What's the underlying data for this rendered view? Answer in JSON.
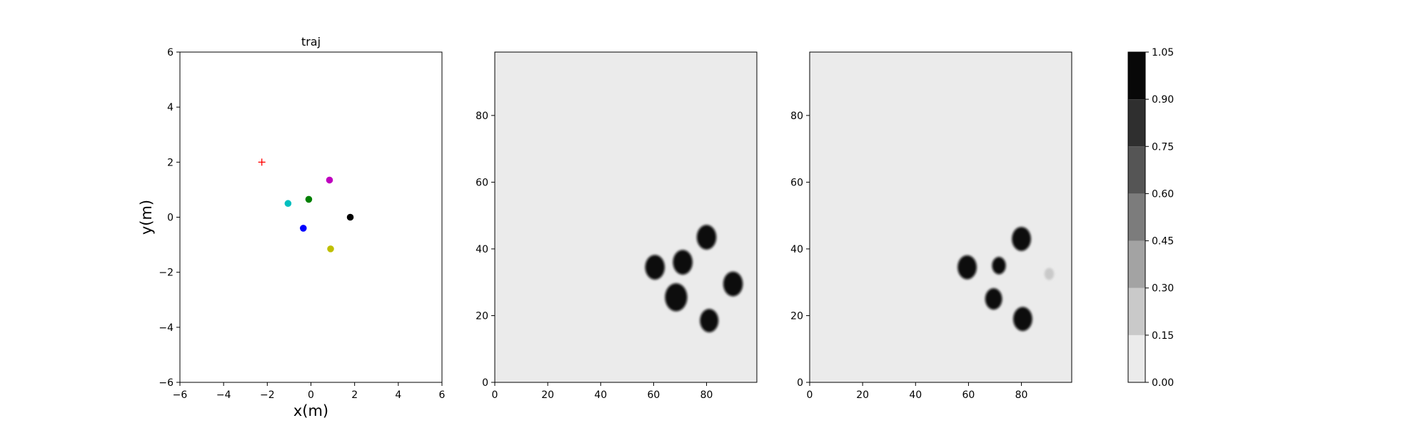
{
  "chart_data": [
    {
      "type": "scatter",
      "title": "traj",
      "xlabel": "x(m)",
      "ylabel": "y(m)",
      "xlim": [
        -6,
        6
      ],
      "ylim": [
        -6,
        6
      ],
      "xticks": [
        "−6",
        "−4",
        "−2",
        "0",
        "2",
        "4",
        "6"
      ],
      "yticks": [
        "−6",
        "−4",
        "−2",
        "0",
        "2",
        "4",
        "6"
      ],
      "target": {
        "marker": "+",
        "color": "#ff0000",
        "x": -2.25,
        "y": 2.0
      },
      "points": [
        {
          "x": 0.85,
          "y": 1.35,
          "color": "#bf00bf"
        },
        {
          "x": -0.1,
          "y": 0.65,
          "color": "#008000"
        },
        {
          "x": -1.05,
          "y": 0.5,
          "color": "#00bfbf"
        },
        {
          "x": 1.8,
          "y": 0.0,
          "color": "#000000"
        },
        {
          "x": -0.35,
          "y": -0.4,
          "color": "#0000ff"
        },
        {
          "x": 0.9,
          "y": -1.15,
          "color": "#bfbf00"
        }
      ]
    },
    {
      "type": "heatmap",
      "title": "",
      "xlim": [
        0,
        99
      ],
      "ylim": [
        0,
        99
      ],
      "xticks": [
        "0",
        "20",
        "40",
        "60",
        "80"
      ],
      "yticks": [
        "0",
        "20",
        "40",
        "60",
        "80"
      ],
      "background_value": 0.0,
      "blobs": [
        {
          "x": 60.5,
          "y": 34.5,
          "r": 3.7,
          "value": 1.0
        },
        {
          "x": 71.0,
          "y": 36.0,
          "r": 3.7,
          "value": 1.0
        },
        {
          "x": 80.0,
          "y": 43.5,
          "r": 3.7,
          "value": 1.0
        },
        {
          "x": 90.0,
          "y": 29.5,
          "r": 3.7,
          "value": 1.0
        },
        {
          "x": 68.5,
          "y": 25.5,
          "r": 4.2,
          "value": 1.0
        },
        {
          "x": 81.0,
          "y": 18.5,
          "r": 3.5,
          "value": 1.0
        }
      ]
    },
    {
      "type": "heatmap",
      "title": "",
      "xlim": [
        0,
        99
      ],
      "ylim": [
        0,
        99
      ],
      "xticks": [
        "0",
        "20",
        "40",
        "60",
        "80"
      ],
      "yticks": [
        "0",
        "20",
        "40",
        "60",
        "80"
      ],
      "background_value": 0.0,
      "blobs": [
        {
          "x": 59.5,
          "y": 34.5,
          "r": 3.6,
          "value": 1.0
        },
        {
          "x": 71.5,
          "y": 35.0,
          "r": 2.6,
          "value": 0.9
        },
        {
          "x": 80.0,
          "y": 43.0,
          "r": 3.6,
          "value": 1.0
        },
        {
          "x": 69.5,
          "y": 25.0,
          "r": 3.2,
          "value": 0.95
        },
        {
          "x": 80.5,
          "y": 19.0,
          "r": 3.6,
          "value": 1.0
        },
        {
          "x": 90.5,
          "y": 32.5,
          "r": 1.8,
          "value": 0.25
        }
      ]
    }
  ],
  "colorbar": {
    "ticks": [
      "0.00",
      "0.15",
      "0.30",
      "0.45",
      "0.60",
      "0.75",
      "0.90",
      "1.05"
    ],
    "levels": [
      0.0,
      0.15,
      0.3,
      0.45,
      0.6,
      0.75,
      0.9,
      1.05
    ],
    "colors": [
      "#ebebeb",
      "#c9c9c9",
      "#a3a3a3",
      "#7c7c7c",
      "#555555",
      "#2f2f2f",
      "#080808"
    ]
  }
}
